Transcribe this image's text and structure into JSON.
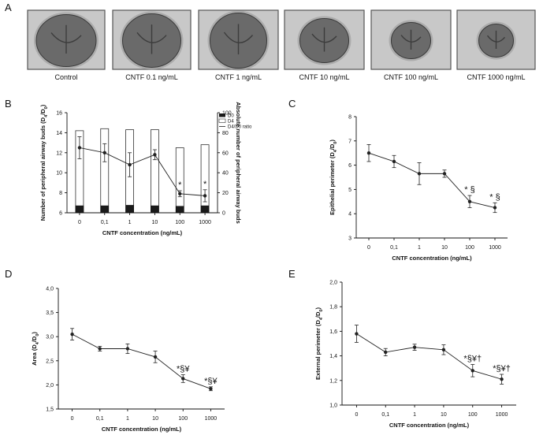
{
  "panel_a": {
    "label": "A",
    "captions": [
      "Control",
      "CNTF 0.1 ng/mL",
      "CNTF 1 ng/mL",
      "CNTF 10 ng/mL",
      "CNTF 100 ng/mL",
      "CNTF 1000 ng/mL"
    ]
  },
  "colors": {
    "bar_d0": "#1a1a1a",
    "bar_d4": "#ffffff",
    "line": "#222222",
    "photo_bg": "#c8c8c8",
    "explant": "#6a6a6a",
    "frame": "#555555"
  },
  "chart_data": [
    {
      "id": "B",
      "panel_label": "B",
      "type": "bar+line",
      "categories": [
        "0",
        "0,1",
        "1",
        "10",
        "100",
        "1000"
      ],
      "xlabel": "CNTF concentration (ng/mL)",
      "ylabel": "Number of peripheral airway buds (D4/D0)",
      "ylabel_sub": [
        "Number of peripheral airway buds (D",
        "4",
        "/D",
        "0",
        ")"
      ],
      "ylim": [
        6,
        16
      ],
      "yticks": [
        "6",
        "8",
        "10",
        "12",
        "14",
        "16"
      ],
      "y2label": "Absolute number of peripheral airway buds",
      "y2lim": [
        0,
        100
      ],
      "y2ticks": [
        "0",
        "20",
        "40",
        "60",
        "80",
        "100"
      ],
      "legend": [
        "D0",
        "D4",
        "D4/D0 ratio"
      ],
      "series": [
        {
          "name": "D0",
          "axis": "right",
          "values": [
            7,
            7,
            7.5,
            7,
            6.5,
            7
          ]
        },
        {
          "name": "D4",
          "axis": "right",
          "values": [
            82,
            84,
            83,
            83,
            65,
            68
          ]
        },
        {
          "name": "D4/D0 ratio",
          "axis": "left",
          "values": [
            12.5,
            12.0,
            10.8,
            11.8,
            7.9,
            7.7
          ],
          "err": [
            1.1,
            0.9,
            1.2,
            0.5,
            0.3,
            0.6
          ]
        }
      ],
      "significance": [
        "",
        "",
        "",
        "",
        "*",
        "*"
      ]
    },
    {
      "id": "C",
      "panel_label": "C",
      "type": "line",
      "categories": [
        "0",
        "0,1",
        "1",
        "10",
        "100",
        "1000"
      ],
      "xlabel": "CNTF concentration (ng/mL)",
      "ylabel": "Epithelial perimeter (D4/D0)",
      "ylabel_sub": [
        "Epithelial perimeter (D",
        "4",
        "/D",
        "0",
        ")"
      ],
      "ylim": [
        3,
        8
      ],
      "yticks": [
        "3",
        "4",
        "5",
        "6",
        "7",
        "8"
      ],
      "series": [
        {
          "name": "D4/D0 ratio",
          "values": [
            6.5,
            6.15,
            5.65,
            5.65,
            4.5,
            4.25
          ],
          "err": [
            0.35,
            0.25,
            0.45,
            0.15,
            0.25,
            0.2
          ]
        }
      ],
      "significance": [
        "",
        "",
        "",
        "",
        "* §",
        "* §"
      ]
    },
    {
      "id": "D",
      "panel_label": "D",
      "type": "line",
      "categories": [
        "0",
        "0,1",
        "1",
        "10",
        "100",
        "1000"
      ],
      "xlabel": "CNTF concentration (ng/mL)",
      "ylabel": "Area (D4/D0)",
      "ylabel_sub": [
        "Area (D",
        "4",
        "/D",
        "0",
        ")"
      ],
      "ylim": [
        1.5,
        4.0
      ],
      "yticks": [
        "1,5",
        "2,0",
        "2,5",
        "3,0",
        "3,5",
        "4,0"
      ],
      "series": [
        {
          "name": "D4/D0 ratio",
          "values": [
            3.05,
            2.75,
            2.75,
            2.58,
            2.13,
            1.92
          ],
          "err": [
            0.12,
            0.05,
            0.1,
            0.12,
            0.08,
            0.04
          ]
        }
      ],
      "significance": [
        "",
        "",
        "",
        "",
        "*§¥",
        "*§¥"
      ]
    },
    {
      "id": "E",
      "panel_label": "E",
      "type": "line",
      "categories": [
        "0",
        "0,1",
        "1",
        "10",
        "100",
        "1000"
      ],
      "xlabel": "CNTF concentration (ng/mL)",
      "ylabel": "External perimeter (D4/D0)",
      "ylabel_sub": [
        "External perimeter (D",
        "4",
        "/D",
        "0",
        ")"
      ],
      "ylim": [
        1.0,
        2.0
      ],
      "yticks": [
        "1,0",
        "1,2",
        "1,4",
        "1,6",
        "1,8",
        "2,0"
      ],
      "series": [
        {
          "name": "D4/D0 ratio",
          "values": [
            1.58,
            1.43,
            1.47,
            1.45,
            1.28,
            1.21
          ],
          "err": [
            0.07,
            0.03,
            0.025,
            0.04,
            0.05,
            0.04
          ]
        }
      ],
      "significance": [
        "",
        "",
        "",
        "",
        "*§¥†",
        "*§¥†"
      ]
    }
  ]
}
